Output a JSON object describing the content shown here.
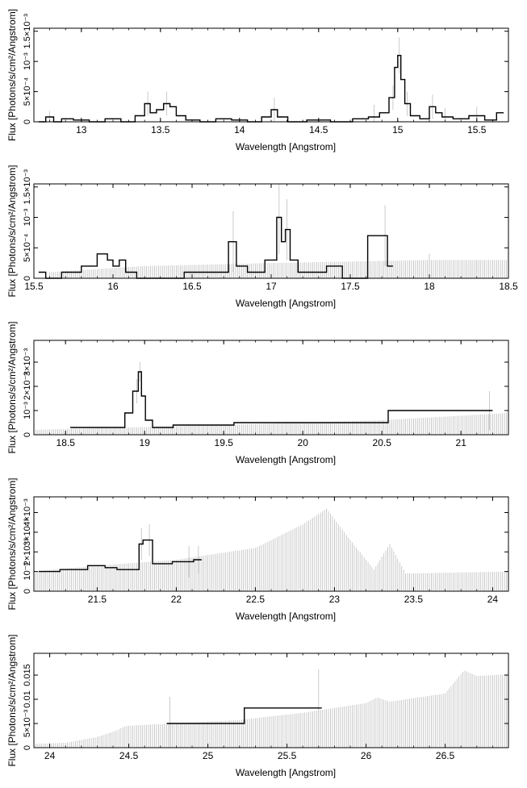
{
  "colors": {
    "line": "#000000",
    "errorbar": "#bdbdbd",
    "axis": "#000000",
    "background": "#ffffff"
  },
  "chart_data": [
    {
      "type": "line",
      "xlabel": "Wavelength [Angstrom]",
      "ylabel": "Flux [Photons/s/cm²/Angstrom]",
      "xlim": [
        12.7,
        15.7
      ],
      "ylim": [
        0,
        0.00155
      ],
      "xticks": [
        "13",
        "13.5",
        "14",
        "14.5",
        "15",
        "15.5"
      ],
      "xtick_values": [
        13,
        13.5,
        14,
        14.5,
        15,
        15.5
      ],
      "yticks": [
        "0",
        "5×10⁻⁴",
        "10⁻³",
        "1.5×10⁻³"
      ],
      "ytick_values": [
        0,
        0.0005,
        0.001,
        0.0015
      ],
      "series": [
        {
          "points": [
            [
              12.75,
              0
            ],
            [
              12.8,
              8e-05
            ],
            [
              12.85,
              0
            ],
            [
              12.9,
              5e-05
            ],
            [
              13.0,
              3e-05
            ],
            [
              13.1,
              0
            ],
            [
              13.2,
              5e-05
            ],
            [
              13.3,
              0
            ],
            [
              13.38,
              0.0001
            ],
            [
              13.42,
              0.0003
            ],
            [
              13.45,
              0.00015
            ],
            [
              13.5,
              0.0002
            ],
            [
              13.54,
              0.0003
            ],
            [
              13.58,
              0.00025
            ],
            [
              13.62,
              0.0001
            ],
            [
              13.7,
              3e-05
            ],
            [
              13.8,
              0
            ],
            [
              13.9,
              5e-05
            ],
            [
              14.0,
              3e-05
            ],
            [
              14.1,
              0
            ],
            [
              14.18,
              8e-05
            ],
            [
              14.22,
              0.0002
            ],
            [
              14.26,
              8e-05
            ],
            [
              14.35,
              0
            ],
            [
              14.5,
              3e-05
            ],
            [
              14.65,
              0
            ],
            [
              14.78,
              5e-05
            ],
            [
              14.85,
              8e-05
            ],
            [
              14.92,
              0.00015
            ],
            [
              14.97,
              0.0004
            ],
            [
              14.99,
              0.0009
            ],
            [
              15.01,
              0.0011
            ],
            [
              15.03,
              0.0007
            ],
            [
              15.06,
              0.0003
            ],
            [
              15.1,
              0.0001
            ],
            [
              15.18,
              5e-05
            ],
            [
              15.22,
              0.00025
            ],
            [
              15.26,
              0.00015
            ],
            [
              15.3,
              8e-05
            ],
            [
              15.4,
              5e-05
            ],
            [
              15.5,
              0.0001
            ],
            [
              15.6,
              3e-05
            ],
            [
              15.65,
              0.00015
            ]
          ],
          "error": [
            [
              12.8,
              0.0001
            ],
            [
              13.42,
              0.0002
            ],
            [
              13.54,
              0.0002
            ],
            [
              14.22,
              0.0002
            ],
            [
              14.85,
              0.0002
            ],
            [
              14.97,
              0.0002
            ],
            [
              15.01,
              0.0003
            ],
            [
              15.06,
              0.0002
            ],
            [
              15.22,
              0.0002
            ],
            [
              15.3,
              0.00015
            ],
            [
              15.5,
              0.00015
            ]
          ]
        }
      ]
    },
    {
      "type": "line",
      "xlabel": "Wavelength [Angstrom]",
      "ylabel": "Flux [Photons/s/cm²/Angstrom]",
      "xlim": [
        15.5,
        18.5
      ],
      "ylim": [
        0,
        0.00155
      ],
      "xticks": [
        "15.5",
        "16",
        "16.5",
        "17",
        "17.5",
        "18",
        "18.5"
      ],
      "xtick_values": [
        15.5,
        16,
        16.5,
        17,
        17.5,
        18,
        18.5
      ],
      "yticks": [
        "0",
        "5×10⁻⁴",
        "10⁻³",
        "1.5×10⁻³"
      ],
      "ytick_values": [
        0,
        0.0005,
        0.001,
        0.0015
      ],
      "series": [
        {
          "points": [
            [
              15.55,
              0.0001
            ],
            [
              15.6,
              0
            ],
            [
              15.75,
              0.0001
            ],
            [
              15.85,
              0.0002
            ],
            [
              15.95,
              0.0004
            ],
            [
              15.98,
              0.0003
            ],
            [
              16.02,
              0.0002
            ],
            [
              16.06,
              0.0003
            ],
            [
              16.1,
              0.0001
            ],
            [
              16.2,
              0
            ],
            [
              16.7,
              0.0001
            ],
            [
              16.76,
              0.0006
            ],
            [
              16.8,
              0.0002
            ],
            [
              16.9,
              0.0001
            ],
            [
              17.02,
              0.0003
            ],
            [
              17.05,
              0.001
            ],
            [
              17.08,
              0.0006
            ],
            [
              17.1,
              0.0008
            ],
            [
              17.14,
              0.0003
            ],
            [
              17.2,
              0.0001
            ],
            [
              17.3,
              0.0001
            ],
            [
              17.4,
              0.0002
            ],
            [
              17.5,
              0
            ],
            [
              17.72,
              0.0007
            ],
            [
              17.75,
              0.0002
            ]
          ],
          "error": [
            [
              16.76,
              0.0005
            ],
            [
              17.05,
              0.0006
            ],
            [
              17.1,
              0.0005
            ],
            [
              17.72,
              0.0005
            ],
            [
              18.0,
              0.0002
            ],
            [
              18.3,
              0.0001
            ]
          ],
          "upper_limit": [
            [
              15.6,
              0.0001
            ],
            [
              16.2,
              0.0002
            ],
            [
              17.0,
              0.00025
            ],
            [
              18.0,
              0.0003
            ],
            [
              18.5,
              0.0003
            ]
          ]
        }
      ]
    },
    {
      "type": "line",
      "xlabel": "Wavelength [Angstrom]",
      "ylabel": "Flux [Photons/s/cm²/Angstrom]",
      "xlim": [
        18.3,
        21.3
      ],
      "ylim": [
        0,
        0.0039
      ],
      "xticks": [
        "18.5",
        "19",
        "19.5",
        "20",
        "20.5",
        "21"
      ],
      "xtick_values": [
        18.5,
        19,
        19.5,
        20,
        20.5,
        21
      ],
      "yticks": [
        "0",
        "10⁻³",
        "2×10⁻³",
        "3×10⁻³"
      ],
      "ytick_values": [
        0,
        0.001,
        0.002,
        0.003
      ],
      "series": [
        {
          "points": [
            [
              18.55,
              0.0003
            ],
            [
              18.65,
              0.0003
            ],
            [
              18.75,
              0.0003
            ],
            [
              18.85,
              0.0003
            ],
            [
              18.9,
              0.0009
            ],
            [
              18.95,
              0.0018
            ],
            [
              18.97,
              0.0026
            ],
            [
              18.99,
              0.0016
            ],
            [
              19.02,
              0.0006
            ],
            [
              19.08,
              0.0003
            ],
            [
              19.28,
              0.0004
            ],
            [
              19.85,
              0.0005
            ],
            [
              19.9,
              0.0005
            ],
            [
              21.18,
              0.001
            ]
          ],
          "error": [
            [
              18.97,
              0.0004
            ],
            [
              18.95,
              0.0005
            ],
            [
              21.18,
              0.0008
            ]
          ],
          "upper_limit": [
            [
              18.3,
              0.0002
            ],
            [
              19.5,
              0.0004
            ],
            [
              20.5,
              0.0006
            ],
            [
              21.3,
              0.0009
            ]
          ]
        }
      ]
    },
    {
      "type": "line",
      "xlabel": "Wavelength [Angstrom]",
      "ylabel": "Flux [Photons/s/cm²/Angstrom]",
      "xlim": [
        21.1,
        24.1
      ],
      "ylim": [
        0,
        0.0048
      ],
      "xticks": [
        "21.5",
        "22",
        "22.5",
        "23",
        "23.5",
        "24"
      ],
      "xtick_values": [
        21.5,
        22,
        22.5,
        23,
        23.5,
        24
      ],
      "yticks": [
        "0",
        "10⁻³",
        "2×10⁻³",
        "3×10⁻³",
        "4×10⁻³"
      ],
      "ytick_values": [
        0,
        0.001,
        0.002,
        0.003,
        0.004
      ],
      "series": [
        {
          "points": [
            [
              21.15,
              0.001
            ],
            [
              21.38,
              0.0011
            ],
            [
              21.5,
              0.0013
            ],
            [
              21.6,
              0.0012
            ],
            [
              21.65,
              0.0011
            ],
            [
              21.7,
              0.0011
            ],
            [
              21.75,
              0.0011
            ],
            [
              21.78,
              0.0024
            ],
            [
              21.8,
              0.0026
            ],
            [
              21.83,
              0.0026
            ],
            [
              21.87,
              0.0014
            ],
            [
              22.08,
              0.0015
            ],
            [
              22.14,
              0.0016
            ]
          ],
          "error": [
            [
              21.78,
              0.0008
            ],
            [
              21.83,
              0.0008
            ],
            [
              22.08,
              0.0008
            ],
            [
              22.14,
              0.0007
            ]
          ],
          "upper_limit": [
            [
              21.1,
              0.001
            ],
            [
              21.5,
              0.0013
            ],
            [
              22.0,
              0.0016
            ],
            [
              22.5,
              0.0022
            ],
            [
              22.8,
              0.0034
            ],
            [
              22.95,
              0.0042
            ],
            [
              23.1,
              0.0026
            ],
            [
              23.25,
              0.0011
            ],
            [
              23.35,
              0.0024
            ],
            [
              23.45,
              0.0009
            ],
            [
              24.1,
              0.001
            ]
          ]
        }
      ]
    },
    {
      "type": "line",
      "xlabel": "Wavelength [Angstrom]",
      "ylabel": "Flux [Photons/s/cm²/Angstrom]",
      "xlim": [
        23.9,
        26.9
      ],
      "ylim": [
        0,
        0.0195
      ],
      "xticks": [
        "24",
        "24.5",
        "25",
        "25.5",
        "26",
        "26.5"
      ],
      "xtick_values": [
        24,
        24.5,
        25,
        25.5,
        26,
        26.5
      ],
      "yticks": [
        "0",
        "5×10⁻³",
        "0.01",
        "0.015"
      ],
      "ytick_values": [
        0,
        0.005,
        0.01,
        0.015
      ],
      "series": [
        {
          "points": [
            [
              24.76,
              0.005
            ],
            [
              25.7,
              0.0082
            ]
          ],
          "error": [
            [
              24.76,
              0.0055
            ],
            [
              25.7,
              0.008
            ]
          ],
          "upper_limit": [
            [
              23.9,
              0.0008
            ],
            [
              24.1,
              0.001
            ],
            [
              24.3,
              0.0022
            ],
            [
              24.42,
              0.0035
            ],
            [
              24.48,
              0.0045
            ],
            [
              24.9,
              0.0052
            ],
            [
              25.2,
              0.0057
            ],
            [
              25.3,
              0.0061
            ],
            [
              25.6,
              0.0072
            ],
            [
              26.0,
              0.0092
            ],
            [
              26.07,
              0.0104
            ],
            [
              26.15,
              0.0095
            ],
            [
              26.5,
              0.0112
            ],
            [
              26.62,
              0.016
            ],
            [
              26.7,
              0.0148
            ],
            [
              26.9,
              0.0152
            ]
          ]
        }
      ]
    }
  ]
}
